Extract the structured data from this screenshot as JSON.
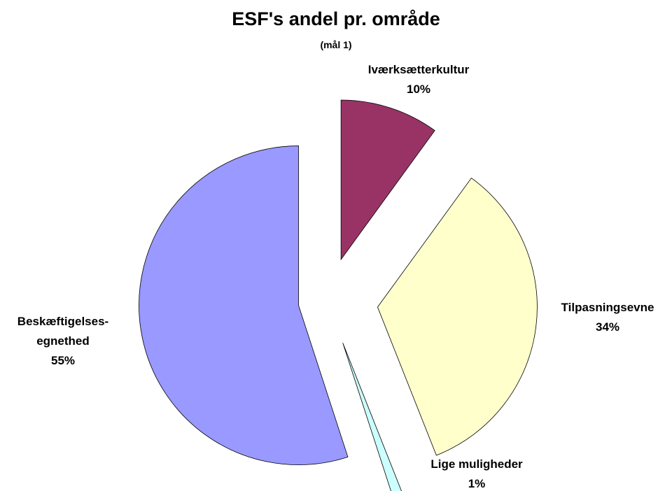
{
  "chart_data": {
    "type": "pie",
    "title": "ESF's andel pr. område",
    "subtitle": "(mål 1)",
    "categories": [
      "Iværksætterkultur",
      "Tilpasningsevne",
      "Lige muligheder",
      "Beskæftigelses-\negnethed"
    ],
    "values": [
      10,
      34,
      1,
      55
    ],
    "value_labels": [
      "10%",
      "34%",
      "1%",
      "55%"
    ],
    "colors": [
      "#993366",
      "#ffffcc",
      "#ccffff",
      "#9999ff"
    ]
  }
}
